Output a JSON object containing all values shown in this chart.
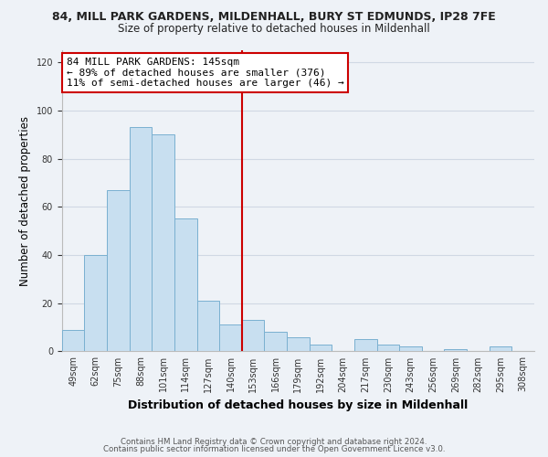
{
  "title1": "84, MILL PARK GARDENS, MILDENHALL, BURY ST EDMUNDS, IP28 7FE",
  "title2": "Size of property relative to detached houses in Mildenhall",
  "xlabel": "Distribution of detached houses by size in Mildenhall",
  "ylabel": "Number of detached properties",
  "bar_labels": [
    "49sqm",
    "62sqm",
    "75sqm",
    "88sqm",
    "101sqm",
    "114sqm",
    "127sqm",
    "140sqm",
    "153sqm",
    "166sqm",
    "179sqm",
    "192sqm",
    "204sqm",
    "217sqm",
    "230sqm",
    "243sqm",
    "256sqm",
    "269sqm",
    "282sqm",
    "295sqm",
    "308sqm"
  ],
  "bar_values": [
    9,
    40,
    67,
    93,
    90,
    55,
    21,
    11,
    13,
    8,
    6,
    3,
    0,
    5,
    3,
    2,
    0,
    1,
    0,
    2,
    0
  ],
  "bar_color": "#c8dff0",
  "bar_edge_color": "#7ab0d0",
  "vline_x": 7.5,
  "vline_color": "#cc0000",
  "annotation_line1": "84 MILL PARK GARDENS: 145sqm",
  "annotation_line2": "← 89% of detached houses are smaller (376)",
  "annotation_line3": "11% of semi-detached houses are larger (46) →",
  "annotation_box_color": "#ffffff",
  "annotation_box_edge_color": "#cc0000",
  "ylim": [
    0,
    125
  ],
  "yticks": [
    0,
    20,
    40,
    60,
    80,
    100,
    120
  ],
  "footer1": "Contains HM Land Registry data © Crown copyright and database right 2024.",
  "footer2": "Contains public sector information licensed under the Open Government Licence v3.0.",
  "bg_color": "#eef2f7",
  "grid_color": "#d0d8e4"
}
